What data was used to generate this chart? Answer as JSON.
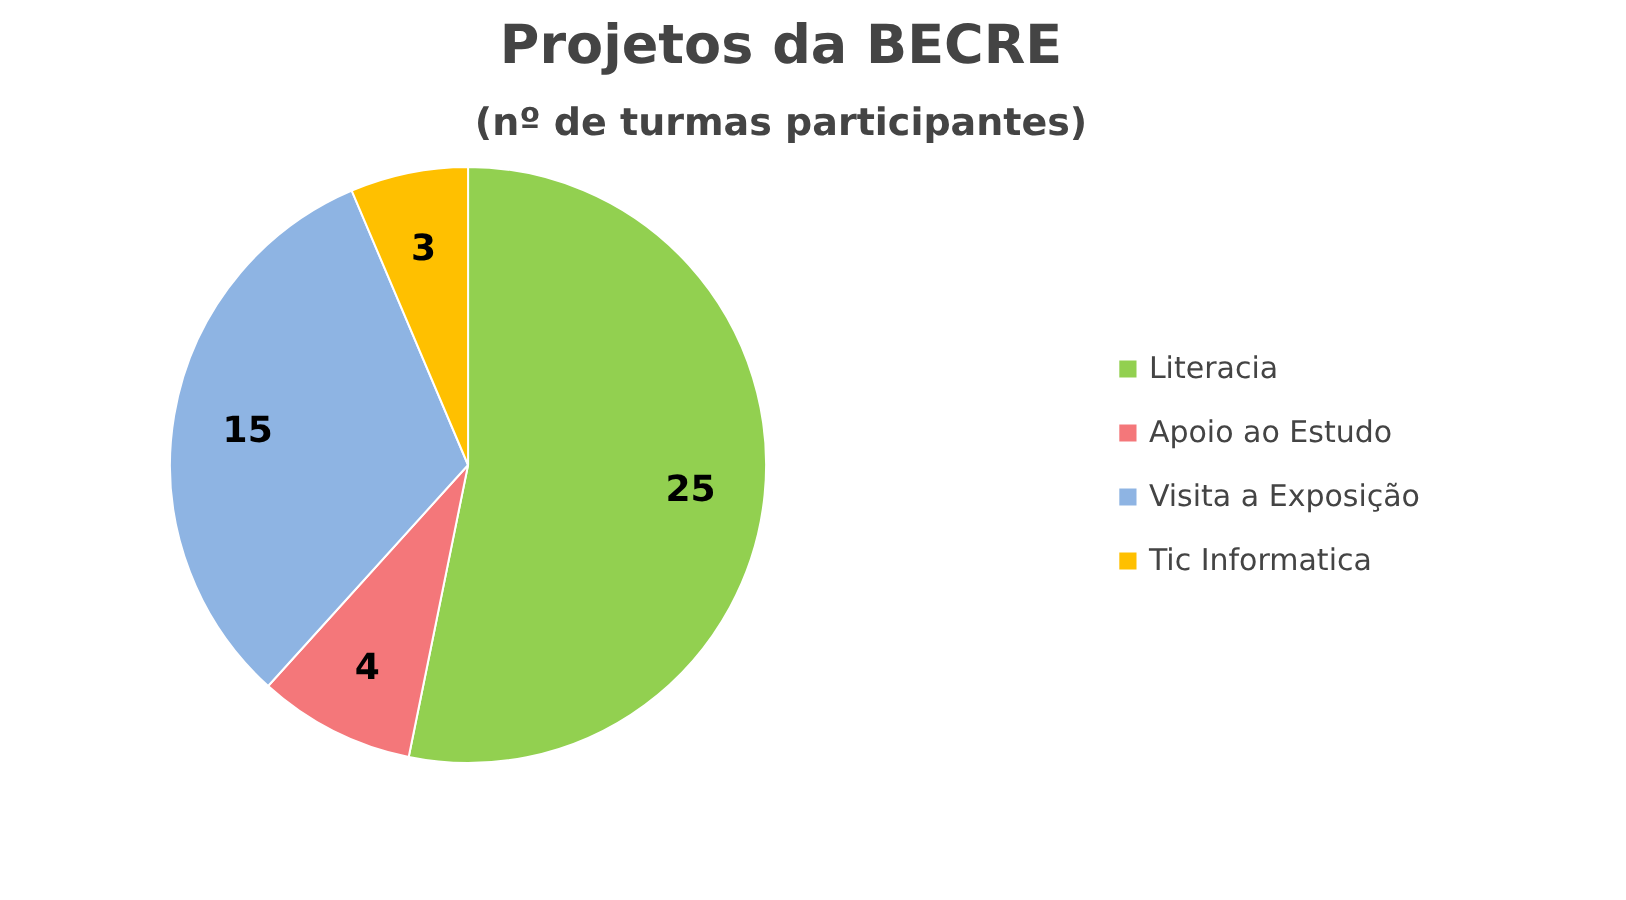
{
  "chart_data": {
    "type": "pie",
    "title": "Projetos da BECRE",
    "subtitle": "(nº de turmas participantes)",
    "categories": [
      "Literacia",
      "Apoio ao Estudo",
      "Visita a Exposição",
      "Tic Informatica"
    ],
    "values": [
      25,
      4,
      15,
      3
    ],
    "colors": [
      "#92d050",
      "#f4777a",
      "#8eb4e3",
      "#ffc000"
    ],
    "data_labels": true,
    "legend": "right"
  }
}
